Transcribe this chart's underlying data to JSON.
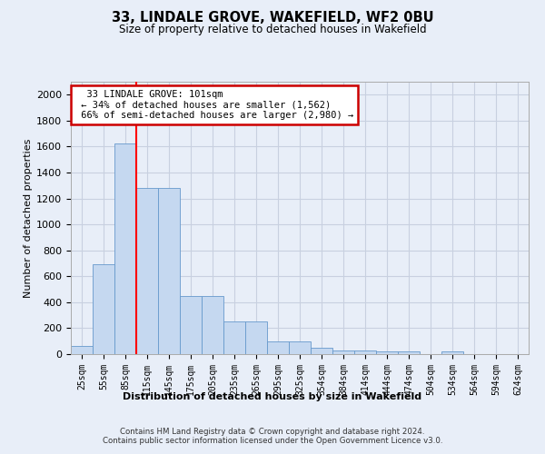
{
  "title1": "33, LINDALE GROVE, WAKEFIELD, WF2 0BU",
  "title2": "Size of property relative to detached houses in Wakefield",
  "xlabel": "Distribution of detached houses by size in Wakefield",
  "ylabel": "Number of detached properties",
  "categories": [
    "25sqm",
    "55sqm",
    "85sqm",
    "115sqm",
    "145sqm",
    "175sqm",
    "205sqm",
    "235sqm",
    "265sqm",
    "295sqm",
    "325sqm",
    "354sqm",
    "384sqm",
    "414sqm",
    "444sqm",
    "474sqm",
    "504sqm",
    "534sqm",
    "564sqm",
    "594sqm",
    "624sqm"
  ],
  "bar_values": [
    65,
    695,
    1625,
    1280,
    1280,
    445,
    445,
    250,
    250,
    100,
    100,
    50,
    30,
    30,
    20,
    20,
    0,
    20,
    0,
    0,
    0
  ],
  "bar_color": "#c5d8f0",
  "bar_edge_color": "#6699cc",
  "background_color": "#e8eef8",
  "annotation_text": "  33 LINDALE GROVE: 101sqm  \n ← 34% of detached houses are smaller (1,562)\n 66% of semi-detached houses are larger (2,980) →",
  "annotation_box_color": "#ffffff",
  "annotation_box_edge": "#cc0000",
  "ylim": [
    0,
    2100
  ],
  "yticks": [
    0,
    200,
    400,
    600,
    800,
    1000,
    1200,
    1400,
    1600,
    1800,
    2000
  ],
  "footer": "Contains HM Land Registry data © Crown copyright and database right 2024.\nContains public sector information licensed under the Open Government Licence v3.0.",
  "grid_color": "#c8d0e0",
  "red_line_index": 2.5
}
